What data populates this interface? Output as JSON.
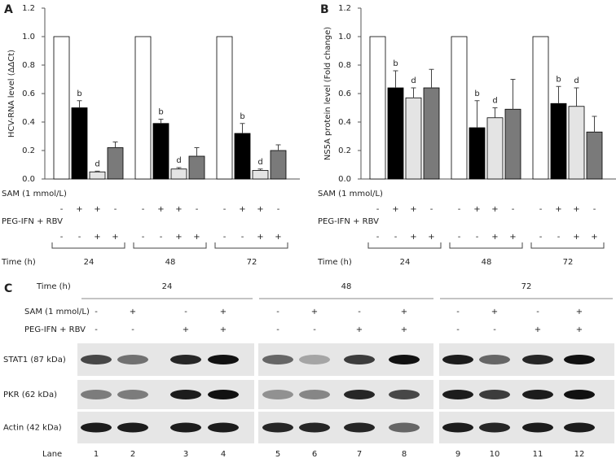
{
  "chart_data": [
    {
      "type": "bar",
      "panel": "A",
      "y_label": "HCV-RNA level (ΔΔCt)",
      "categories": [
        "24",
        "48",
        "72"
      ],
      "series": [
        {
          "color": "#ffffff",
          "values": [
            1.0,
            1.0,
            1.0
          ]
        },
        {
          "color": "#000000",
          "values": [
            0.5,
            0.39,
            0.32
          ],
          "errors": [
            0.05,
            0.03,
            0.07
          ],
          "sig": [
            "b",
            "b",
            "b"
          ]
        },
        {
          "color": "#e4e4e4",
          "values": [
            0.05,
            0.07,
            0.06
          ],
          "errors": [
            0.005,
            0.01,
            0.01
          ],
          "sig": [
            "d",
            "d",
            "d"
          ]
        },
        {
          "color": "#7a7a7a",
          "values": [
            0.22,
            0.16,
            0.2
          ],
          "errors": [
            0.04,
            0.06,
            0.04
          ]
        }
      ],
      "ylim": [
        0,
        1.2
      ],
      "yticks": [
        {
          "value": 0,
          "label": "0.0"
        },
        0.2,
        0.4,
        0.6,
        0.8,
        {
          "value": 1,
          "label": "1.0"
        },
        1.2
      ],
      "sam_label": "SAM (1 mmol/L)",
      "sam_signs": [
        "-",
        "+",
        "+",
        "-"
      ],
      "peg_label": "PEG-IFN + RBV",
      "peg_signs": [
        "-",
        "-",
        "+",
        "+"
      ],
      "time_label": "Time (h)"
    },
    {
      "type": "bar",
      "panel": "B",
      "y_label": "NS5A protein level (Fold change)",
      "categories": [
        "24",
        "48",
        "72"
      ],
      "series": [
        {
          "color": "#ffffff",
          "values": [
            1.0,
            1.0,
            1.0
          ]
        },
        {
          "color": "#000000",
          "values": [
            0.64,
            0.36,
            0.53
          ],
          "errors": [
            0.12,
            0.19,
            0.12
          ],
          "sig": [
            "b",
            "b",
            "b"
          ]
        },
        {
          "color": "#e4e4e4",
          "values": [
            0.57,
            0.43,
            0.51
          ],
          "errors": [
            0.07,
            0.07,
            0.13
          ],
          "sig": [
            "d",
            "d",
            "d"
          ]
        },
        {
          "color": "#7a7a7a",
          "values": [
            0.64,
            0.49,
            0.33
          ],
          "errors": [
            0.13,
            0.21,
            0.11
          ]
        }
      ],
      "ylim": [
        0,
        1.2
      ],
      "yticks": [
        {
          "value": 0,
          "label": "0.0"
        },
        0.2,
        0.4,
        0.6,
        0.8,
        {
          "value": 1,
          "label": "1.0"
        },
        1.2
      ],
      "sam_label": "SAM (1 mmol/L)",
      "sam_signs": [
        "-",
        "+",
        "+",
        "-"
      ],
      "peg_label": "PEG-IFN + RBV",
      "peg_signs": [
        "-",
        "-",
        "+",
        "+"
      ],
      "time_label": "Time (h)"
    }
  ],
  "blot": {
    "panel": "C",
    "time_label": "Time (h)",
    "times": [
      "24",
      "48",
      "72"
    ],
    "sam_label": "SAM (1 mmol/L)",
    "sam_signs": [
      "-",
      "+",
      "-",
      "+",
      "-",
      "+",
      "-",
      "+",
      "-",
      "+",
      "-",
      "+"
    ],
    "peg_label": "PEG-IFN + RBV",
    "peg_signs": [
      "-",
      "-",
      "+",
      "+",
      "-",
      "-",
      "+",
      "+",
      "-",
      "-",
      "+",
      "+"
    ],
    "rows": [
      "STAT1 (87 kDa)",
      "PKR (62 kDa)",
      "Actin (42 kDa)"
    ],
    "lane_label": "Lane",
    "lanes": [
      1,
      2,
      3,
      4,
      5,
      6,
      7,
      8,
      9,
      10,
      11,
      12
    ]
  }
}
